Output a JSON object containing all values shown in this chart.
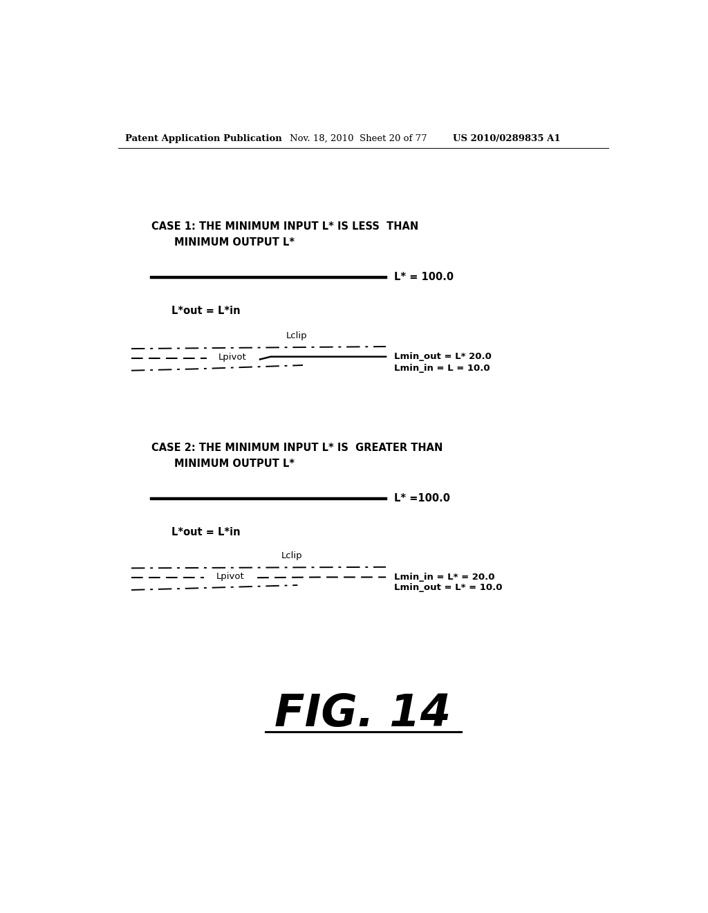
{
  "bg_color": "#ffffff",
  "header_left": "Patent Application Publication",
  "header_mid": "Nov. 18, 2010  Sheet 20 of 77",
  "header_right": "US 2010/0289835 A1",
  "case1_title_line1": "CASE 1: THE MINIMUM INPUT L* IS LESS  THAN",
  "case1_title_line2": "MINIMUM OUTPUT L*",
  "case1_lstar_label": "L* = 100.0",
  "case1_lout_lin_label": "L*out = L*in",
  "case1_lclip_label": "Lclip",
  "case1_lpivot_label": "Lpivot",
  "case1_lmin_out_label": "Lmin_out = L* 20.0",
  "case1_lmin_in_label": "Lmin_in = L = 10.0",
  "case2_title_line1": "CASE 2: THE MINIMUM INPUT L* IS  GREATER THAN",
  "case2_title_line2": "MINIMUM OUTPUT L*",
  "case2_lstar_label": "L* =100.0",
  "case2_lout_lin_label": "L*out = L*in",
  "case2_lclip_label": "Lclip",
  "case2_lpivot_label": "Lpivot",
  "case2_lmin_in_label": "Lmin_in = L* = 20.0",
  "case2_lmin_out_label": "Lmin_out = L* = 10.0",
  "fig_label": "FIG. 14"
}
